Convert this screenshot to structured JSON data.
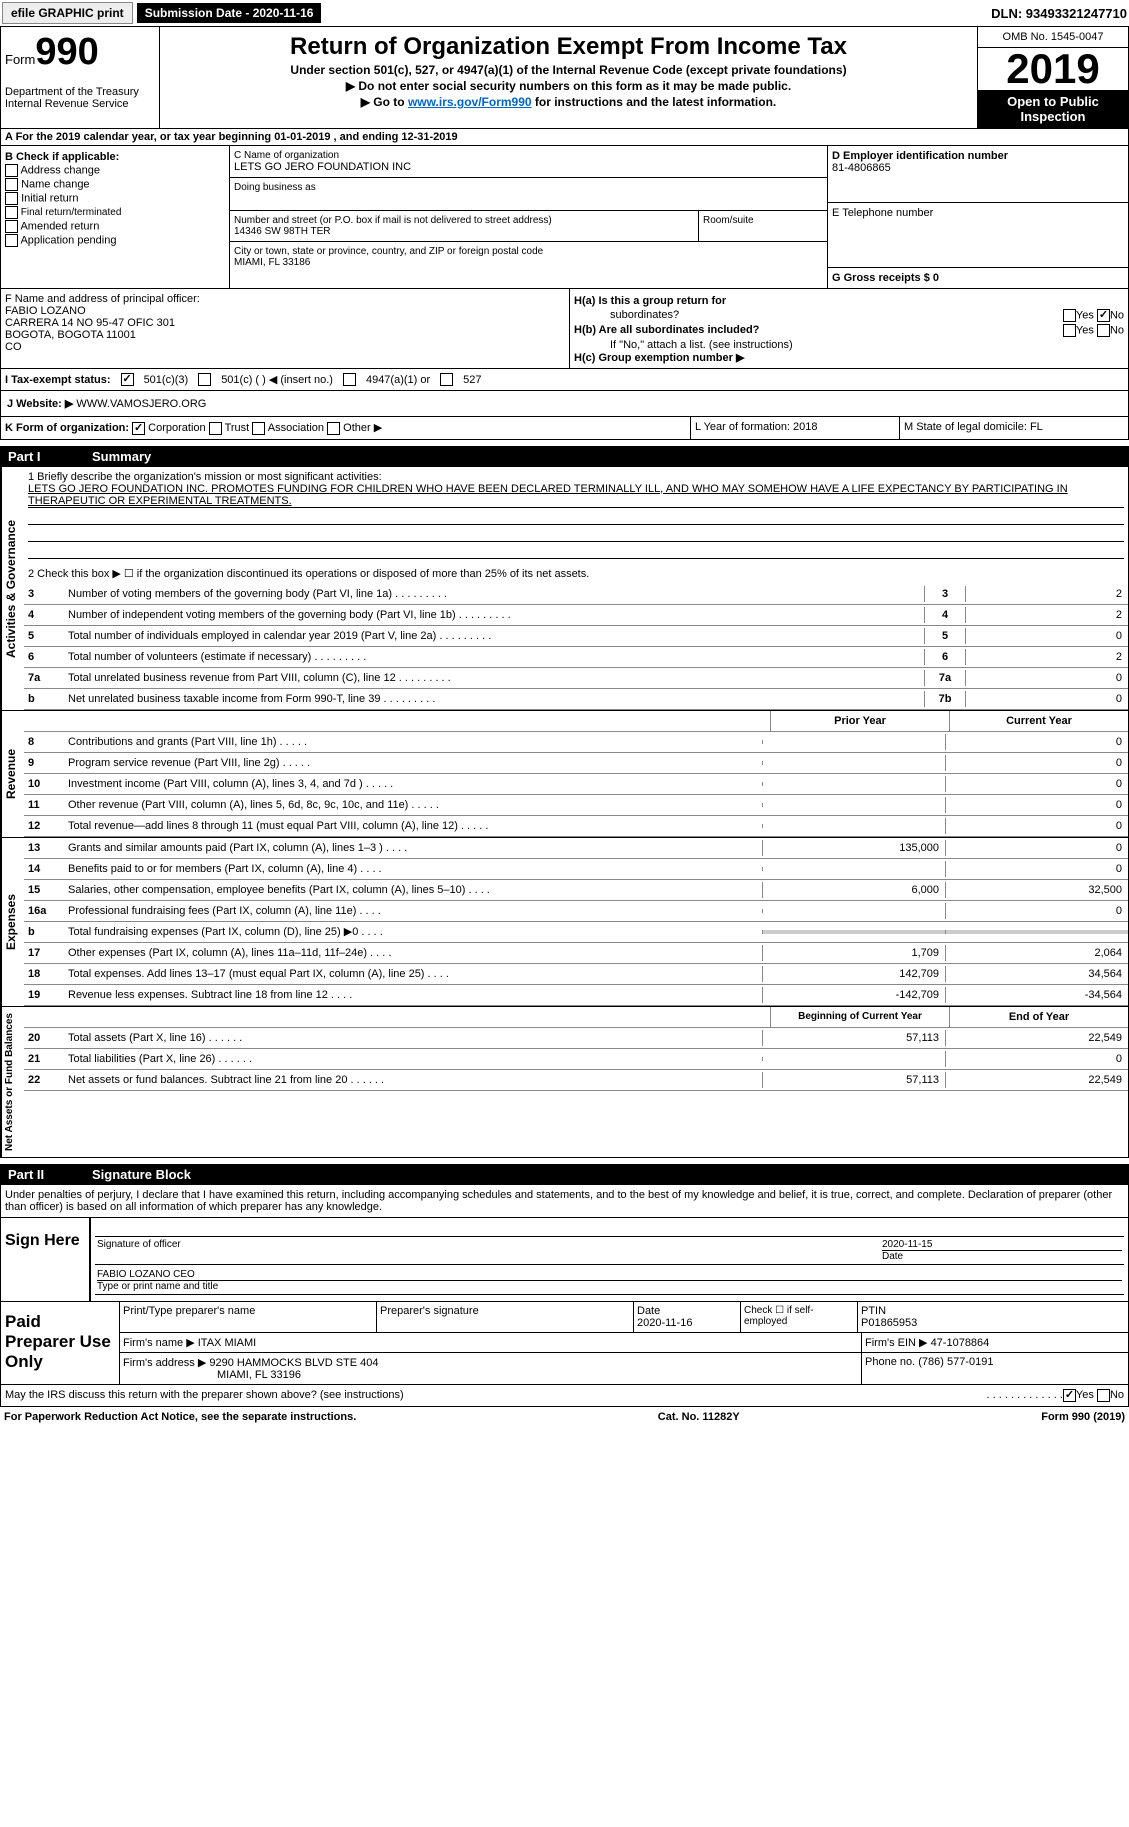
{
  "header": {
    "efile": "efile GRAPHIC print",
    "submission": "Submission Date - 2020-11-16",
    "dln": "DLN: 93493321247710"
  },
  "form": {
    "prefix": "Form",
    "number": "990",
    "dept": "Department of the Treasury\nInternal Revenue Service",
    "title": "Return of Organization Exempt From Income Tax",
    "subtitle": "Under section 501(c), 527, or 4947(a)(1) of the Internal Revenue Code (except private foundations)",
    "note1": "▶ Do not enter social security numbers on this form as it may be made public.",
    "note2_a": "▶ Go to ",
    "note2_link": "www.irs.gov/Form990",
    "note2_b": " for instructions and the latest information.",
    "omb": "OMB No. 1545-0047",
    "year": "2019",
    "inspect": "Open to Public Inspection"
  },
  "lineA": "A For the 2019 calendar year, or tax year beginning 01-01-2019   , and ending 12-31-2019",
  "sectionB": {
    "title": "B Check if applicable:",
    "items": [
      "Address change",
      "Name change",
      "Initial return",
      "Final return/terminated",
      "Amended return",
      "Application pending"
    ]
  },
  "sectionC": {
    "name_label": "C Name of organization",
    "name": "LETS GO JERO FOUNDATION INC",
    "dba_label": "Doing business as",
    "addr_label": "Number and street (or P.O. box if mail is not delivered to street address)",
    "addr": "14346 SW 98TH TER",
    "room_label": "Room/suite",
    "city_label": "City or town, state or province, country, and ZIP or foreign postal code",
    "city": "MIAMI, FL  33186"
  },
  "sectionD": {
    "label": "D Employer identification number",
    "ein": "81-4806865",
    "e_label": "E Telephone number",
    "g_label": "G Gross receipts $ 0"
  },
  "sectionF": {
    "label": "F  Name and address of principal officer:",
    "name": "FABIO LOZANO",
    "line1": "CARRERA 14 NO 95-47 OFIC 301",
    "line2": "BOGOTA, BOGOTA  11001",
    "line3": "CO"
  },
  "sectionH": {
    "ha": "H(a)  Is this a group return for",
    "ha2": "subordinates?",
    "hb": "H(b)  Are all subordinates included?",
    "hb_note": "If \"No,\" attach a list. (see instructions)",
    "hc": "H(c)  Group exemption number ▶",
    "yes": "Yes",
    "no": "No"
  },
  "sectionI": {
    "label": "I   Tax-exempt status:",
    "opt1": "501(c)(3)",
    "opt2": "501(c) (  ) ◀ (insert no.)",
    "opt3": "4947(a)(1) or",
    "opt4": "527"
  },
  "sectionJ": {
    "label": "J   Website: ▶",
    "url": "WWW.VAMOSJERO.ORG"
  },
  "sectionK": {
    "label": "K Form of organization:",
    "opts": [
      "Corporation",
      "Trust",
      "Association",
      "Other ▶"
    ]
  },
  "sectionL": "L Year of formation: 2018",
  "sectionM": "M State of legal domicile: FL",
  "part1": {
    "label": "Part I",
    "title": "Summary"
  },
  "governance": {
    "label": "Activities & Governance",
    "line1": "1   Briefly describe the organization's mission or most significant activities:",
    "mission": "LETS GO JERO FOUNDATION INC. PROMOTES FUNDING FOR CHILDREN WHO HAVE BEEN DECLARED TERMINALLY ILL, AND WHO MAY SOMEHOW HAVE A LIFE EXPECTANCY BY PARTICIPATING IN THERAPEUTIC OR EXPERIMENTAL TREATMENTS.",
    "line2": "2   Check this box ▶ ☐ if the organization discontinued its operations or disposed of more than 25% of its net assets.",
    "rows": [
      {
        "num": "3",
        "text": "Number of voting members of the governing body (Part VI, line 1a)",
        "box": "3",
        "val": "2"
      },
      {
        "num": "4",
        "text": "Number of independent voting members of the governing body (Part VI, line 1b)",
        "box": "4",
        "val": "2"
      },
      {
        "num": "5",
        "text": "Total number of individuals employed in calendar year 2019 (Part V, line 2a)",
        "box": "5",
        "val": "0"
      },
      {
        "num": "6",
        "text": "Total number of volunteers (estimate if necessary)",
        "box": "6",
        "val": "2"
      },
      {
        "num": "7a",
        "text": "Total unrelated business revenue from Part VIII, column (C), line 12",
        "box": "7a",
        "val": "0"
      },
      {
        "num": "b",
        "text": "Net unrelated business taxable income from Form 990-T, line 39",
        "box": "7b",
        "val": "0"
      }
    ]
  },
  "revenue": {
    "label": "Revenue",
    "header_prior": "Prior Year",
    "header_current": "Current Year",
    "rows": [
      {
        "num": "8",
        "text": "Contributions and grants (Part VIII, line 1h)",
        "prior": "",
        "curr": "0"
      },
      {
        "num": "9",
        "text": "Program service revenue (Part VIII, line 2g)",
        "prior": "",
        "curr": "0"
      },
      {
        "num": "10",
        "text": "Investment income (Part VIII, column (A), lines 3, 4, and 7d )",
        "prior": "",
        "curr": "0"
      },
      {
        "num": "11",
        "text": "Other revenue (Part VIII, column (A), lines 5, 6d, 8c, 9c, 10c, and 11e)",
        "prior": "",
        "curr": "0"
      },
      {
        "num": "12",
        "text": "Total revenue—add lines 8 through 11 (must equal Part VIII, column (A), line 12)",
        "prior": "",
        "curr": "0"
      }
    ]
  },
  "expenses": {
    "label": "Expenses",
    "rows": [
      {
        "num": "13",
        "text": "Grants and similar amounts paid (Part IX, column (A), lines 1–3 )",
        "prior": "135,000",
        "curr": "0"
      },
      {
        "num": "14",
        "text": "Benefits paid to or for members (Part IX, column (A), line 4)",
        "prior": "",
        "curr": "0"
      },
      {
        "num": "15",
        "text": "Salaries, other compensation, employee benefits (Part IX, column (A), lines 5–10)",
        "prior": "6,000",
        "curr": "32,500"
      },
      {
        "num": "16a",
        "text": "Professional fundraising fees (Part IX, column (A), line 11e)",
        "prior": "",
        "curr": "0"
      },
      {
        "num": "b",
        "text": "Total fundraising expenses (Part IX, column (D), line 25) ▶0",
        "prior": "shaded",
        "curr": "shaded"
      },
      {
        "num": "17",
        "text": "Other expenses (Part IX, column (A), lines 11a–11d, 11f–24e)",
        "prior": "1,709",
        "curr": "2,064"
      },
      {
        "num": "18",
        "text": "Total expenses. Add lines 13–17 (must equal Part IX, column (A), line 25)",
        "prior": "142,709",
        "curr": "34,564"
      },
      {
        "num": "19",
        "text": "Revenue less expenses. Subtract line 18 from line 12",
        "prior": "-142,709",
        "curr": "-34,564"
      }
    ]
  },
  "netassets": {
    "label": "Net Assets or Fund Balances",
    "header_begin": "Beginning of Current Year",
    "header_end": "End of Year",
    "rows": [
      {
        "num": "20",
        "text": "Total assets (Part X, line 16)",
        "begin": "57,113",
        "end": "22,549"
      },
      {
        "num": "21",
        "text": "Total liabilities (Part X, line 26)",
        "begin": "",
        "end": "0"
      },
      {
        "num": "22",
        "text": "Net assets or fund balances. Subtract line 21 from line 20",
        "begin": "57,113",
        "end": "22,549"
      }
    ]
  },
  "part2": {
    "label": "Part II",
    "title": "Signature Block",
    "perjury": "Under penalties of perjury, I declare that I have examined this return, including accompanying schedules and statements, and to the best of my knowledge and belief, it is true, correct, and complete. Declaration of preparer (other than officer) is based on all information of which preparer has any knowledge."
  },
  "sign": {
    "label": "Sign Here",
    "sig_label": "Signature of officer",
    "date": "2020-11-15",
    "date_label": "Date",
    "name": "FABIO LOZANO CEO",
    "name_label": "Type or print name and title"
  },
  "prep": {
    "label": "Paid Preparer Use Only",
    "h1": "Print/Type preparer's name",
    "h2": "Preparer's signature",
    "h3": "Date",
    "h3v": "2020-11-16",
    "h4": "Check ☐ if self-employed",
    "h5": "PTIN",
    "h5v": "P01865953",
    "firm_label": "Firm's name   ▶",
    "firm": "ITAX MIAMI",
    "ein_label": "Firm's EIN ▶",
    "ein": "47-1078864",
    "addr_label": "Firm's address ▶",
    "addr1": "9290 HAMMOCKS BLVD STE 404",
    "addr2": "MIAMI, FL  33196",
    "phone_label": "Phone no.",
    "phone": "(786) 577-0191"
  },
  "footer": {
    "discuss": "May the IRS discuss this return with the preparer shown above? (see instructions)",
    "yes": "Yes",
    "no": "No",
    "paperwork": "For Paperwork Reduction Act Notice, see the separate instructions.",
    "cat": "Cat. No. 11282Y",
    "form": "Form 990 (2019)"
  }
}
